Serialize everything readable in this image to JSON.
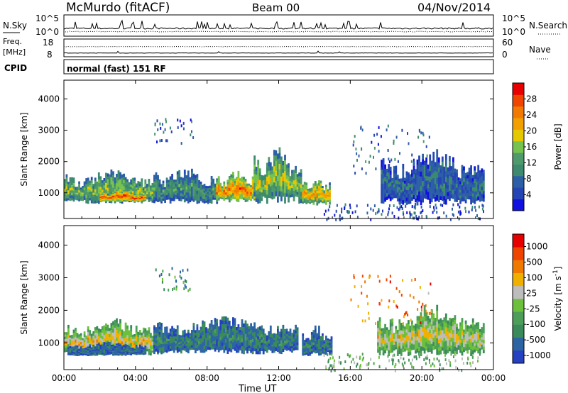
{
  "header": {
    "station": "McMurdo (fitACF)",
    "beam": "Beam 00",
    "date": "04/Nov/2014"
  },
  "strips": {
    "nsky_label": "N.Sky",
    "nsearch_label": "N.Search",
    "noise_left_ticks": [
      "10^5",
      "10^0"
    ],
    "noise_right_ticks": [
      "10^5",
      "10^0"
    ],
    "freq_label": "Freq.",
    "freq_unit": "[MHz]",
    "freq_ticks": [
      "18",
      "8"
    ],
    "nave_label": "Nave",
    "nave_ticks": [
      "60",
      "0"
    ],
    "cpid_label": "CPID",
    "cpid_text": "normal (fast) 151 RF"
  },
  "chart_data": [
    {
      "type": "heatmap",
      "name": "power-panel",
      "xlabel": "Time UT",
      "ylabel": "Slant Range [km]",
      "xlim": [
        0,
        24
      ],
      "ylim": [
        180,
        4600
      ],
      "xticks": [
        0,
        4,
        8,
        12,
        16,
        20,
        24
      ],
      "xtick_labels": [
        "00:00",
        "04:00",
        "08:00",
        "12:00",
        "16:00",
        "20:00",
        "00:00"
      ],
      "yticks": [
        1000,
        2000,
        3000,
        4000
      ],
      "colorbar": {
        "label": "Power [dB]",
        "tick_labels": [
          "4",
          "8",
          "12",
          "16",
          "20",
          "24",
          "28"
        ],
        "colors": [
          "#1010e0",
          "#2545b4",
          "#2c5fa6",
          "#3d8a6e",
          "#4f9a6a",
          "#76c24e",
          "#e6c800",
          "#f2a000",
          "#f27a00",
          "#ef4500",
          "#e80000"
        ]
      },
      "blobs": [
        {
          "t0": 0.0,
          "t1": 5.3,
          "r0": 650,
          "r1": 1650,
          "value": 0.55
        },
        {
          "t0": 2.0,
          "t1": 4.6,
          "r0": 700,
          "r1": 1100,
          "value": 0.97
        },
        {
          "t0": 5.0,
          "t1": 8.6,
          "r0": 650,
          "r1": 1700,
          "value": 0.4
        },
        {
          "t0": 8.5,
          "t1": 10.6,
          "r0": 700,
          "r1": 1600,
          "value": 0.9
        },
        {
          "t0": 10.6,
          "t1": 13.2,
          "r0": 650,
          "r1": 2300,
          "value": 0.6
        },
        {
          "t0": 13.3,
          "t1": 14.8,
          "r0": 600,
          "r1": 1450,
          "value": 0.8
        },
        {
          "t0": 17.7,
          "t1": 23.5,
          "r0": 600,
          "r1": 2200,
          "value": 0.25
        }
      ],
      "sparse_regions": [
        {
          "t0": 5.0,
          "t1": 7.2,
          "r0": 2600,
          "r1": 3400,
          "value": 0.2
        },
        {
          "t0": 14.5,
          "t1": 23.5,
          "r0": 180,
          "r1": 700,
          "value": 0.15
        },
        {
          "t0": 16.0,
          "t1": 20.5,
          "r0": 1600,
          "r1": 3200,
          "value": 0.2
        }
      ]
    },
    {
      "type": "heatmap",
      "name": "velocity-panel",
      "xlabel": "Time UT",
      "ylabel": "Slant Range [km]",
      "xlim": [
        0,
        24
      ],
      "ylim": [
        180,
        4600
      ],
      "xticks": [
        0,
        4,
        8,
        12,
        16,
        20,
        24
      ],
      "xtick_labels": [
        "00:00",
        "04:00",
        "08:00",
        "12:00",
        "16:00",
        "20:00",
        "00:00"
      ],
      "yticks": [
        1000,
        2000,
        3000,
        4000
      ],
      "colorbar": {
        "label": "Velocity [m s",
        "label_exponent": "-1",
        "label_close": "]",
        "tick_labels": [
          "1000",
          "500",
          "100",
          "25",
          "-25",
          "-100",
          "-500",
          "-1000"
        ],
        "colors": [
          "#2540c0",
          "#2c64a4",
          "#3a8a5a",
          "#4c9e58",
          "#6dc03c",
          "#bdbdbd",
          "#f0b000",
          "#f07a00",
          "#ee4400",
          "#e60000"
        ]
      },
      "blobs": [
        {
          "t0": 0.0,
          "t1": 5.3,
          "r0": 600,
          "r1": 1650,
          "value": 0.7
        },
        {
          "t0": 0.2,
          "t1": 4.6,
          "r0": 600,
          "r1": 1000,
          "value": 0.15
        },
        {
          "t0": 5.0,
          "t1": 13.0,
          "r0": 650,
          "r1": 1700,
          "value": 0.22
        },
        {
          "t0": 13.3,
          "t1": 14.9,
          "r0": 600,
          "r1": 1450,
          "value": 0.2
        },
        {
          "t0": 17.5,
          "t1": 23.5,
          "r0": 600,
          "r1": 2000,
          "value": 0.65
        }
      ],
      "sparse_regions": [
        {
          "t0": 5.0,
          "t1": 7.2,
          "r0": 2600,
          "r1": 3400,
          "value": 0.3
        },
        {
          "t0": 14.5,
          "t1": 23.5,
          "r0": 180,
          "r1": 700,
          "value": 0.4
        },
        {
          "t0": 16.0,
          "t1": 20.5,
          "r0": 1600,
          "r1": 3200,
          "value": 0.8
        }
      ]
    }
  ]
}
